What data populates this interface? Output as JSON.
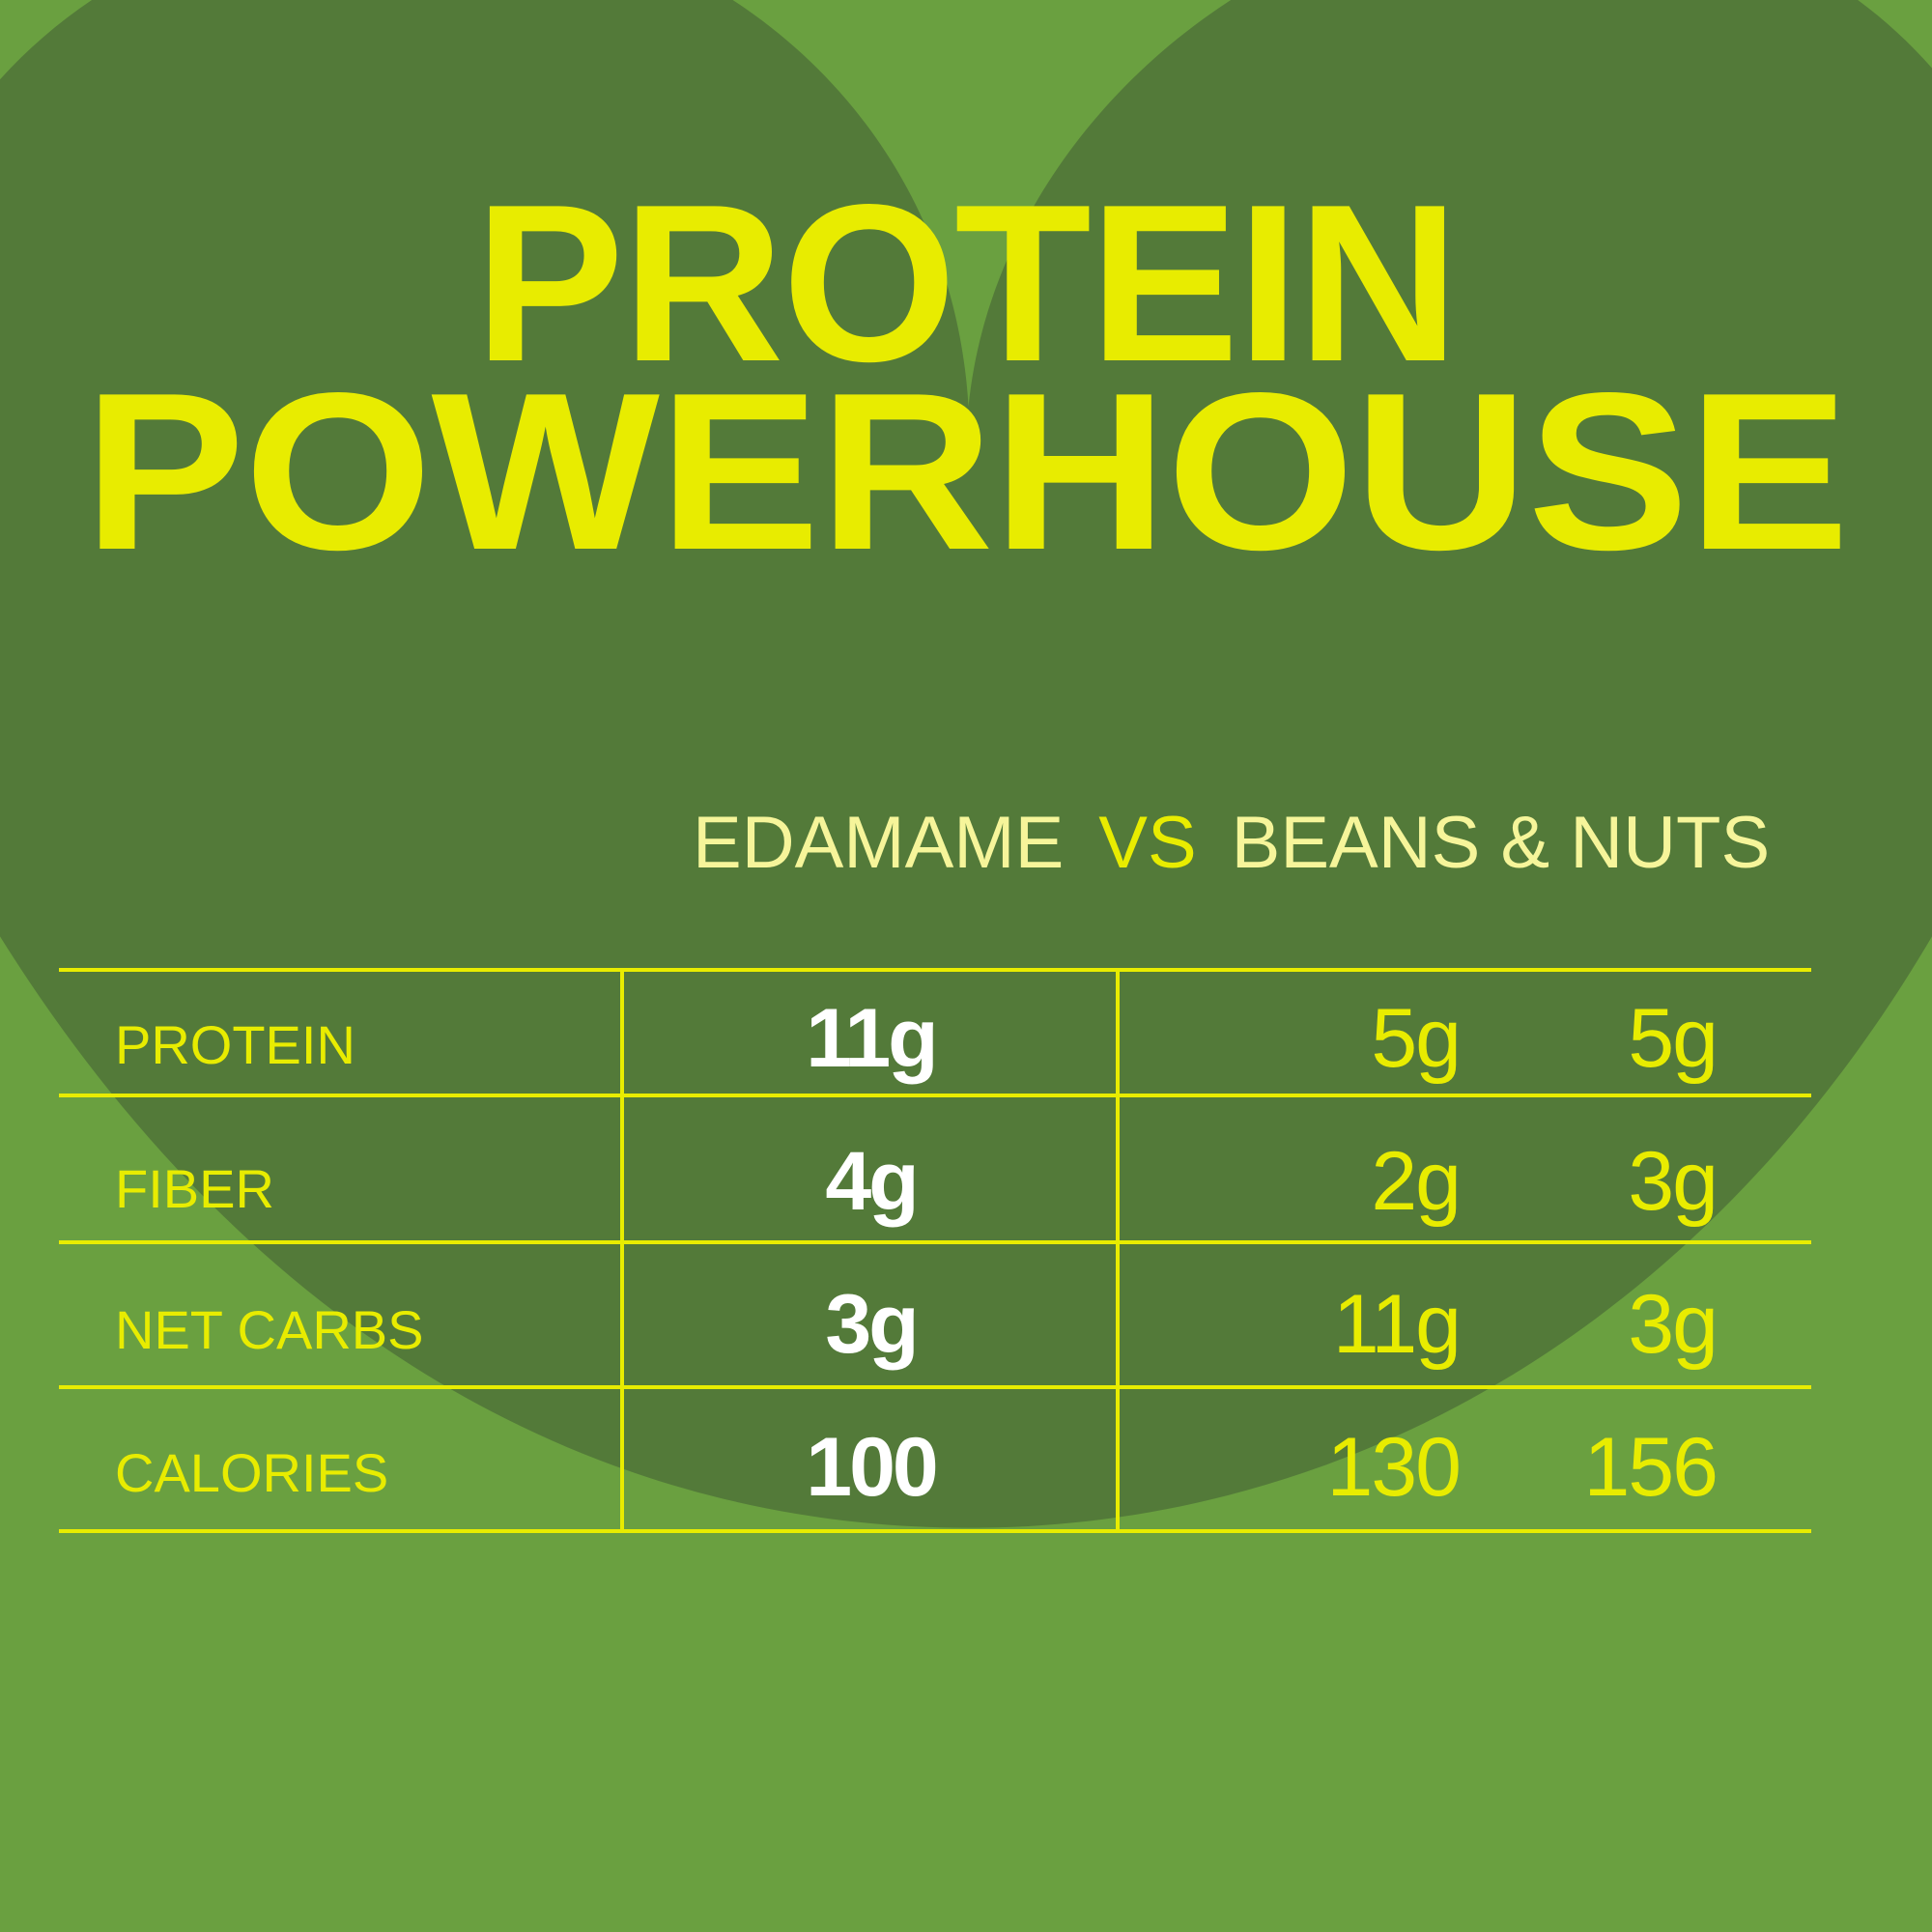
{
  "colors": {
    "background": "#6aa040",
    "heart": "#537a39",
    "accent_yellow": "#e8ec00",
    "pale_yellow": "#f6f59a",
    "value_white": "#ffffff"
  },
  "title": {
    "line1": "PROTEIN",
    "line2": "POWERHOUSE"
  },
  "subtitle": {
    "left": "EDAMAME",
    "vs": "VS",
    "right": "BEANS & NUTS"
  },
  "table": {
    "rows": [
      {
        "label": "PROTEIN",
        "edamame": "11g",
        "col2": "5g",
        "col3": "5g"
      },
      {
        "label": "FIBER",
        "edamame": "4g",
        "col2": "2g",
        "col3": "3g"
      },
      {
        "label": "NET CARBS",
        "edamame": "3g",
        "col2": "11g",
        "col3": "3g"
      },
      {
        "label": "CALORIES",
        "edamame": "100",
        "col2": "130",
        "col3": "156"
      }
    ]
  }
}
